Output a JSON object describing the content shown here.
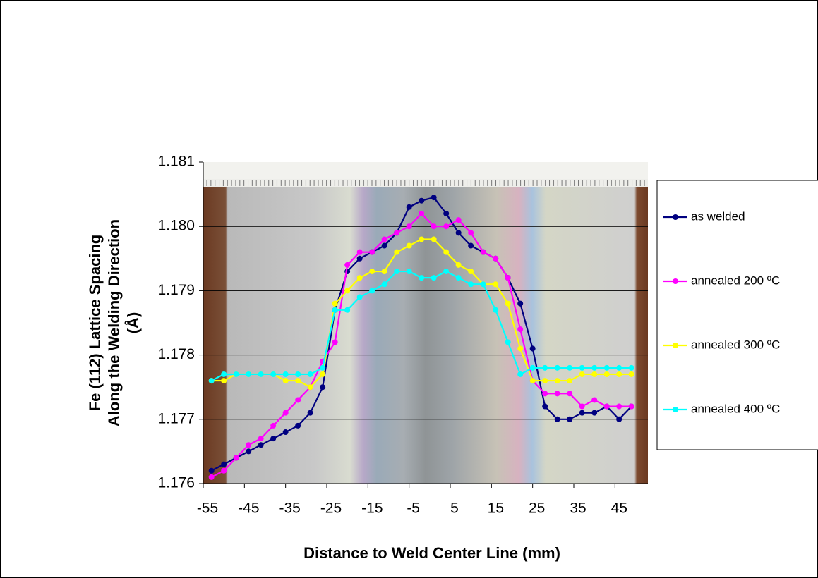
{
  "chart_data": {
    "type": "line",
    "xlabel": "Distance to Weld Center Line (mm)",
    "ylabel": [
      "Fe (112) Lattice Spacing",
      "Along the Welding Direction",
      "(Å)"
    ],
    "x": [
      -53,
      -50,
      -47,
      -44,
      -41,
      -38,
      -35,
      -32,
      -29,
      -26,
      -23,
      -20,
      -17,
      -14,
      -11,
      -8,
      -5,
      -2,
      1,
      4,
      7,
      10,
      13,
      16,
      19,
      22,
      25,
      28,
      31,
      34,
      37,
      40,
      43,
      46,
      49
    ],
    "series": [
      {
        "name": "as welded",
        "color": "#000080",
        "values": [
          1.1762,
          1.1763,
          1.1764,
          1.1765,
          1.1766,
          1.1767,
          1.1768,
          1.1769,
          1.1771,
          1.1775,
          1.1787,
          1.1793,
          1.1795,
          1.1796,
          1.1797,
          1.1799,
          1.1803,
          1.1804,
          1.18045,
          1.1802,
          1.1799,
          1.1797,
          1.1796,
          1.1795,
          1.1792,
          1.1788,
          1.1781,
          1.1772,
          1.177,
          1.177,
          1.1771,
          1.1771,
          1.1772,
          1.177,
          1.1772
        ]
      },
      {
        "name": "annealed 200 ºC",
        "color": "#ff00ff",
        "values": [
          1.1761,
          1.1762,
          1.1764,
          1.1766,
          1.1767,
          1.1769,
          1.1771,
          1.1773,
          1.1775,
          1.1779,
          1.1782,
          1.1794,
          1.1796,
          1.1796,
          1.1798,
          1.1799,
          1.18,
          1.1802,
          1.18,
          1.18,
          1.1801,
          1.1799,
          1.1796,
          1.1795,
          1.1792,
          1.1784,
          1.1776,
          1.1774,
          1.1774,
          1.1774,
          1.1772,
          1.1773,
          1.1772,
          1.1772,
          1.1772
        ]
      },
      {
        "name": "annealed 300 ºC",
        "color": "#ffff00",
        "values": [
          1.1776,
          1.1776,
          1.1777,
          1.1777,
          1.1777,
          1.1777,
          1.1776,
          1.1776,
          1.1775,
          1.1777,
          1.1788,
          1.179,
          1.1792,
          1.1793,
          1.1793,
          1.1796,
          1.1797,
          1.1798,
          1.1798,
          1.1796,
          1.1794,
          1.1793,
          1.1791,
          1.1791,
          1.1788,
          1.1781,
          1.1776,
          1.1776,
          1.1776,
          1.1776,
          1.1777,
          1.1777,
          1.1777,
          1.1777,
          1.1777
        ]
      },
      {
        "name": "annealed 400 ºC",
        "color": "#00ffff",
        "values": [
          1.1776,
          1.1777,
          1.1777,
          1.1777,
          1.1777,
          1.1777,
          1.1777,
          1.1777,
          1.1777,
          1.1778,
          1.1787,
          1.1787,
          1.1789,
          1.179,
          1.1791,
          1.1793,
          1.1793,
          1.1792,
          1.1792,
          1.1793,
          1.1792,
          1.1791,
          1.1791,
          1.1787,
          1.1782,
          1.1777,
          1.1778,
          1.1778,
          1.1778,
          1.1778,
          1.1778,
          1.1778,
          1.1778,
          1.1778,
          1.1778
        ]
      }
    ],
    "xlim": [
      -55,
      53
    ],
    "xticks": [
      -55,
      -45,
      -35,
      -25,
      -15,
      -5,
      5,
      15,
      25,
      35,
      45
    ],
    "ylim": [
      1.176,
      1.181
    ],
    "yticks": [
      1.176,
      1.177,
      1.178,
      1.179,
      {
        "value": 1.18,
        "label": "1.180"
      },
      1.181
    ],
    "grid": true,
    "legend": "right"
  }
}
